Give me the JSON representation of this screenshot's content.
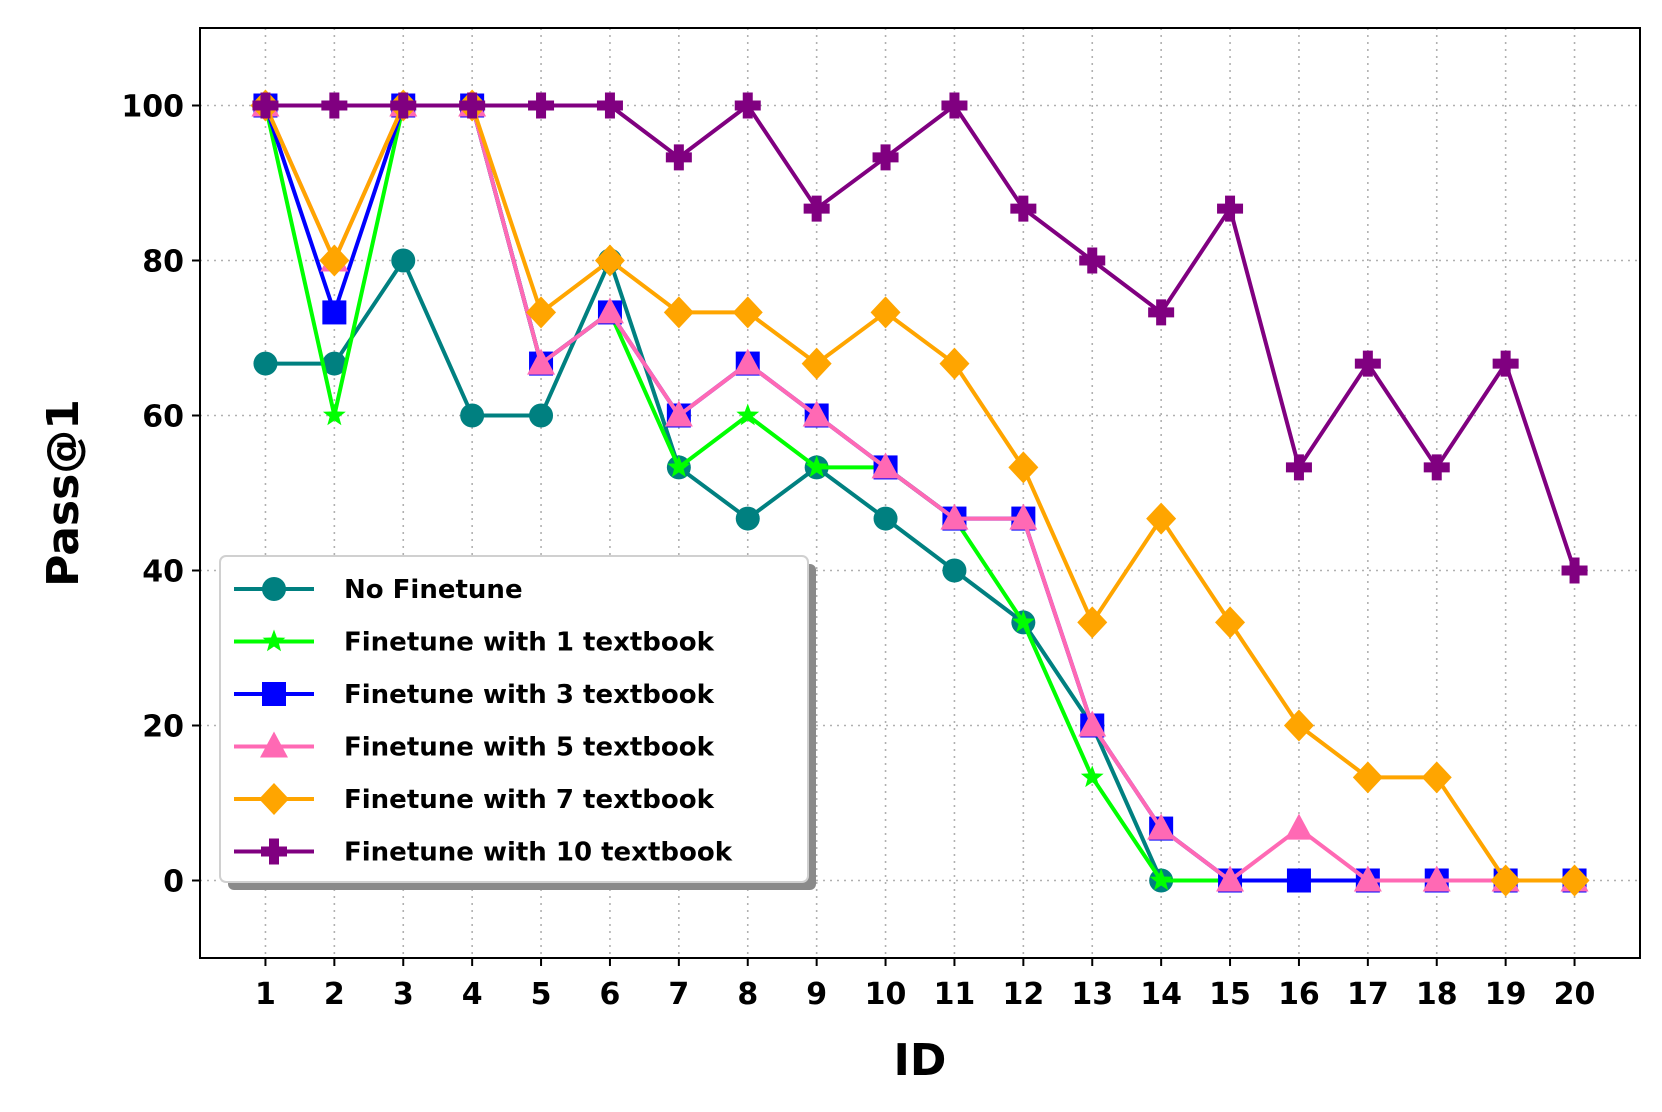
{
  "chart_data": {
    "type": "line",
    "title": "",
    "xlabel": "ID",
    "ylabel": "Pass@1",
    "x": [
      1,
      2,
      3,
      4,
      5,
      6,
      7,
      8,
      9,
      10,
      11,
      12,
      13,
      14,
      15,
      16,
      17,
      18,
      19,
      20
    ],
    "xticks": [
      "1",
      "2",
      "3",
      "4",
      "5",
      "6",
      "7",
      "8",
      "9",
      "10",
      "11",
      "12",
      "13",
      "14",
      "15",
      "16",
      "17",
      "18",
      "19",
      "20"
    ],
    "xlim": [
      0.05,
      20.95
    ],
    "ylim": [
      -10,
      110
    ],
    "yticks": [
      "0",
      "20",
      "40",
      "60",
      "80",
      "100"
    ],
    "ytick_values": [
      0,
      20,
      40,
      60,
      80,
      100
    ],
    "grid": true,
    "legend_position": "lower-left",
    "series": [
      {
        "name": "No Finetune",
        "color": "#008080",
        "marker": "circle",
        "values": [
          66.7,
          66.7,
          80,
          60,
          60,
          80,
          53.3,
          46.7,
          53.3,
          46.7,
          40,
          33.3,
          20,
          0,
          null,
          null,
          null,
          null,
          null,
          null
        ]
      },
      {
        "name": "Finetune with 1 textbook",
        "color": "#00ff00",
        "marker": "star",
        "values": [
          100,
          60,
          100,
          100,
          66.7,
          73.3,
          53.3,
          60,
          53.3,
          53.3,
          46.7,
          33.3,
          13.3,
          0,
          0,
          0,
          0,
          0,
          0,
          0
        ]
      },
      {
        "name": "Finetune with 3 textbook",
        "color": "#0000ff",
        "marker": "square",
        "values": [
          100,
          73.3,
          100,
          100,
          66.7,
          73.3,
          60,
          66.7,
          60,
          53.3,
          46.7,
          46.7,
          20,
          6.7,
          0,
          0,
          0,
          0,
          0,
          0
        ]
      },
      {
        "name": "Finetune with 5 textbook",
        "color": "#ff69b4",
        "marker": "triangle",
        "values": [
          100,
          80,
          100,
          100,
          66.7,
          73.3,
          60,
          66.7,
          60,
          53.3,
          46.7,
          46.7,
          20,
          6.7,
          0,
          6.7,
          0,
          0,
          0,
          0
        ]
      },
      {
        "name": "Finetune with 7 textbook",
        "color": "#ffa500",
        "marker": "diamond",
        "values": [
          100,
          80,
          100,
          100,
          73.3,
          80,
          73.3,
          73.3,
          66.7,
          73.3,
          66.7,
          53.3,
          33.3,
          46.7,
          33.3,
          20,
          13.3,
          13.3,
          0,
          0
        ]
      },
      {
        "name": "Finetune with 10 textbook",
        "color": "#800080",
        "marker": "plus",
        "values": [
          100,
          100,
          100,
          100,
          100,
          100,
          93.3,
          100,
          86.7,
          93.3,
          100,
          86.7,
          80,
          73.3,
          86.7,
          53.3,
          66.7,
          53.3,
          66.7,
          40
        ]
      }
    ]
  }
}
